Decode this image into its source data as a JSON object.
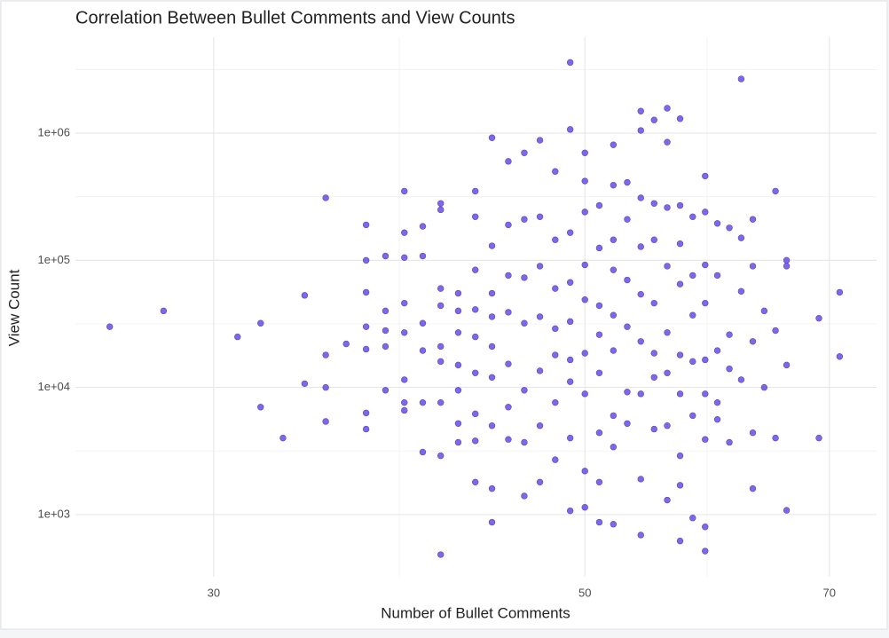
{
  "chart_data": {
    "type": "scatter",
    "title": "Correlation Between Bullet Comments and View Counts",
    "x_label": "Number of Bullet Comments",
    "y_label": "View Count",
    "color": "#4b2fd6",
    "xscale": "log",
    "yscale": "log",
    "grid": true,
    "xlim": [
      24.8,
      74.7
    ],
    "ylim": [
      324,
      5680000
    ],
    "xticks": [
      30,
      50,
      70
    ],
    "yticks": [
      {
        "value": 1000,
        "label": "1e+03"
      },
      {
        "value": 10000,
        "label": "1e+04"
      },
      {
        "value": 100000,
        "label": "1e+05"
      },
      {
        "value": 1000000,
        "label": "1e+06"
      }
    ],
    "x": [
      26,
      28,
      31,
      32,
      32,
      33,
      34,
      34,
      35,
      35,
      35,
      35,
      36,
      37,
      37,
      37,
      37,
      37,
      37,
      37,
      38,
      38,
      38,
      38,
      38,
      39,
      39,
      39,
      39,
      39,
      39,
      39,
      39,
      40,
      40,
      40,
      40,
      40,
      40,
      41,
      41,
      41,
      41,
      41,
      41,
      41,
      41,
      41,
      42,
      42,
      42,
      42,
      42,
      42,
      42,
      43,
      43,
      43,
      43,
      43,
      43,
      43,
      43,
      43,
      44,
      44,
      44,
      44,
      44,
      44,
      44,
      44,
      44,
      45,
      45,
      45,
      45,
      45,
      45,
      45,
      46,
      46,
      46,
      46,
      46,
      46,
      46,
      47,
      47,
      47,
      47,
      47,
      47,
      47,
      48,
      48,
      48,
      48,
      48,
      48,
      48,
      49,
      49,
      49,
      49,
      49,
      49,
      49,
      49,
      49,
      50,
      50,
      50,
      50,
      50,
      50,
      50,
      50,
      50,
      51,
      51,
      51,
      51,
      51,
      51,
      51,
      51,
      52,
      52,
      52,
      52,
      52,
      52,
      52,
      52,
      52,
      53,
      53,
      53,
      53,
      53,
      53,
      54,
      54,
      54,
      54,
      54,
      54,
      54,
      54,
      54,
      55,
      55,
      55,
      55,
      55,
      55,
      55,
      56,
      56,
      56,
      56,
      56,
      56,
      56,
      56,
      57,
      57,
      57,
      57,
      57,
      57,
      57,
      57,
      57,
      58,
      58,
      58,
      58,
      58,
      58,
      59,
      59,
      59,
      59,
      59,
      59,
      59,
      59,
      59,
      60,
      60,
      60,
      60,
      60,
      61,
      61,
      61,
      61,
      62,
      62,
      62,
      62,
      63,
      63,
      63,
      63,
      63,
      64,
      64,
      65,
      65,
      65,
      66,
      66,
      66,
      66,
      69,
      69,
      71,
      71
    ],
    "values": [
      30000,
      40000,
      25000,
      32000,
      7000,
      4000,
      53000,
      10700,
      310000,
      18000,
      10000,
      5400,
      22000,
      190000,
      100000,
      56000,
      30000,
      20000,
      6300,
      4700,
      108000,
      40000,
      28000,
      21000,
      9500,
      350000,
      165000,
      105000,
      46000,
      27000,
      11500,
      7600,
      6600,
      185000,
      108000,
      32000,
      19500,
      7600,
      3100,
      280000,
      250000,
      60000,
      44000,
      21000,
      16000,
      7600,
      2900,
      484,
      55000,
      40000,
      27000,
      15000,
      9500,
      5200,
      3700,
      350000,
      220000,
      84000,
      41000,
      25000,
      13000,
      6200,
      3800,
      1800,
      920000,
      130000,
      55000,
      36000,
      21000,
      12000,
      5000,
      1600,
      870,
      600000,
      190000,
      76000,
      39000,
      15300,
      7000,
      3900,
      700000,
      210000,
      73000,
      32000,
      9500,
      3700,
      1400,
      880000,
      220000,
      90000,
      36000,
      13500,
      5000,
      1800,
      500000,
      145000,
      60000,
      29000,
      18000,
      7600,
      2700,
      3600000,
      1070000,
      165000,
      67000,
      33000,
      16500,
      11100,
      4000,
      1070,
      700000,
      420000,
      240000,
      92000,
      49000,
      18600,
      8900,
      2200,
      1140,
      270000,
      125000,
      44000,
      26000,
      13000,
      4400,
      1800,
      870,
      810000,
      390000,
      145000,
      84000,
      37000,
      19500,
      6000,
      3400,
      840,
      410000,
      210000,
      70000,
      30000,
      9200,
      5200,
      1490000,
      1050000,
      310000,
      128000,
      54000,
      23000,
      8900,
      1900,
      690,
      1270000,
      280000,
      145000,
      46000,
      18600,
      12000,
      4700,
      1570000,
      850000,
      260000,
      90000,
      27000,
      13000,
      5000,
      1300,
      1300000,
      270000,
      135000,
      65000,
      18000,
      8900,
      2900,
      1700,
      620,
      220000,
      76000,
      37000,
      16000,
      6000,
      940,
      460000,
      240000,
      92000,
      46000,
      16500,
      8900,
      3900,
      800,
      516,
      195000,
      76000,
      19500,
      7600,
      5600,
      180000,
      26000,
      14000,
      3700,
      2670000,
      150000,
      57000,
      11500,
      210000,
      90000,
      23000,
      4400,
      1600,
      40000,
      10000,
      350000,
      28000,
      4000,
      100000,
      90000,
      15000,
      1080,
      35000,
      4000,
      56000,
      17500
    ]
  }
}
